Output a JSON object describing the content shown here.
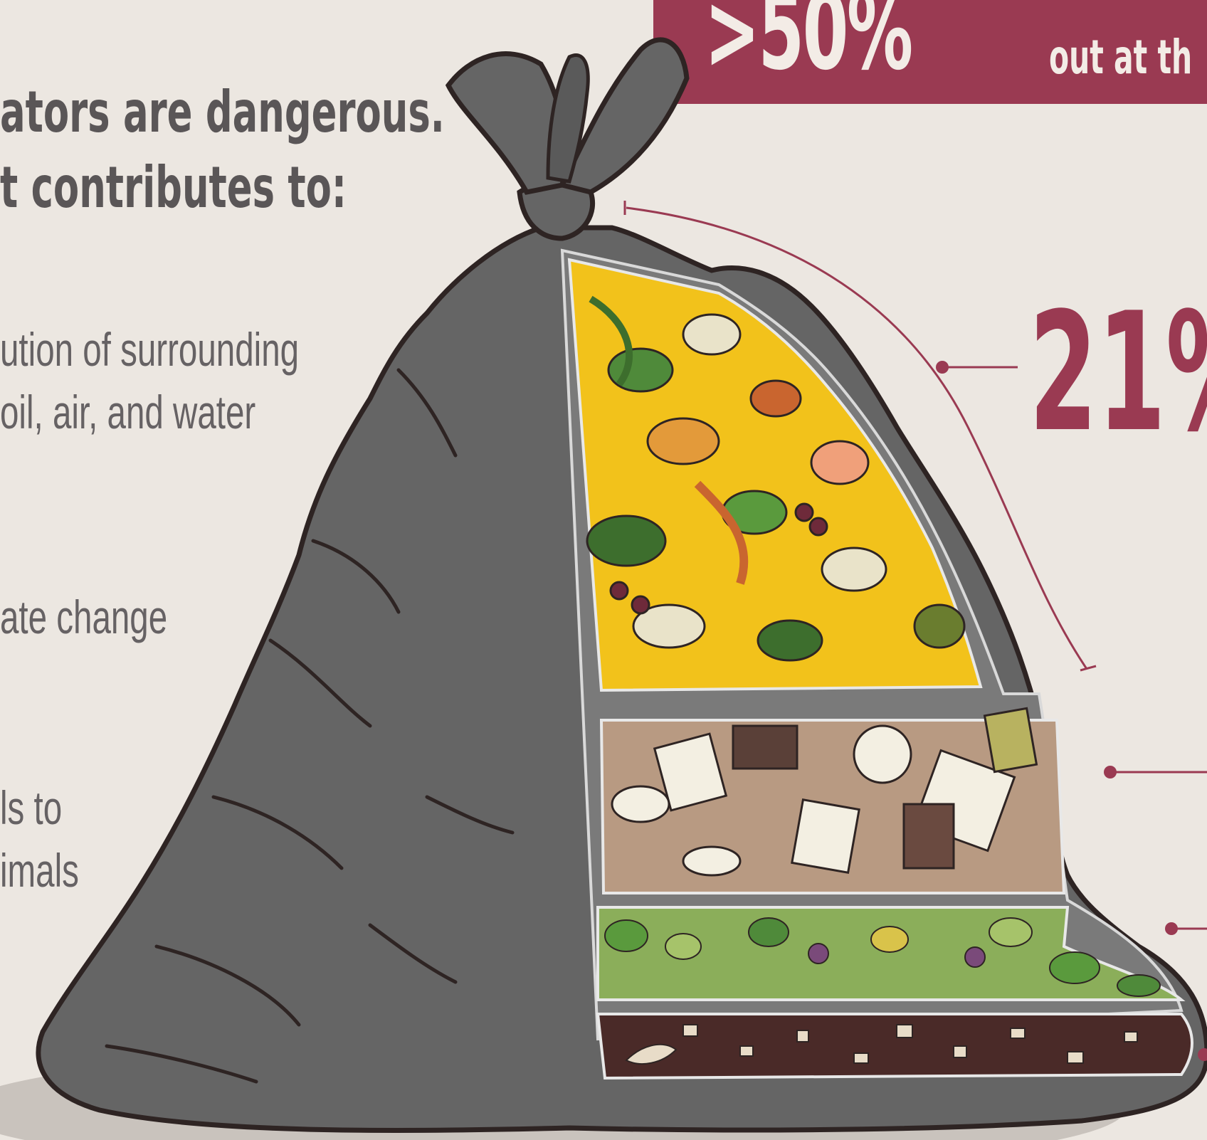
{
  "banner": {
    "big_text": ">50%",
    "small_text": "out at th"
  },
  "headings": {
    "line1": "ators are dangerous.",
    "line2": "t contributes to:"
  },
  "effects": [
    {
      "line1": "ution of surrounding",
      "line2": "oil, air, and water"
    },
    {
      "line1": "ate change"
    },
    {
      "line1": "ls to",
      "line2": "imals"
    }
  ],
  "callout": {
    "percent": "21%"
  },
  "colors": {
    "background": "#ece7e1",
    "accent": "#9a3a52",
    "bag": "#656565",
    "food_layer": "#f2c21b",
    "paper_layer": "#b89a82",
    "yard_layer": "#8bae5a",
    "soil_layer": "#4a2a28"
  }
}
